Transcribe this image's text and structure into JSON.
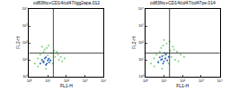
{
  "chart_data": [
    {
      "type": "scatter",
      "title": "cd83fitc+CD14/cd47/igg2apa.012",
      "xlabel": "FL1-H",
      "ylabel": "FL2-H",
      "log": true,
      "xlim": [
        1,
        10000
      ],
      "ylim": [
        1,
        10000
      ],
      "xticks": [
        {
          "value": 1,
          "label": "10⁰"
        },
        {
          "value": 10,
          "label": "10¹"
        },
        {
          "value": 100,
          "label": "10²"
        },
        {
          "value": 1000,
          "label": "10³"
        },
        {
          "value": 10000,
          "label": "10⁴"
        }
      ],
      "yticks": [
        {
          "value": 1,
          "label": "10⁰"
        },
        {
          "value": 10,
          "label": "10¹"
        },
        {
          "value": 100,
          "label": "10²"
        },
        {
          "value": 1000,
          "label": "10³"
        },
        {
          "value": 10000,
          "label": "10⁴"
        }
      ],
      "quadrant": {
        "x": 20,
        "y": 25
      },
      "series": [
        {
          "color": "#7fcf7f",
          "x": [
            3,
            5,
            8,
            12,
            18,
            25,
            40,
            60,
            4,
            6,
            10,
            15,
            22,
            35,
            2,
            3,
            7,
            9,
            14,
            30,
            50,
            80,
            5,
            11
          ],
          "y": [
            4,
            8,
            3,
            12,
            6,
            15,
            10,
            8,
            20,
            30,
            18,
            25,
            35,
            20,
            6,
            12,
            40,
            50,
            9,
            30,
            15,
            12,
            60,
            70
          ]
        },
        {
          "color": "#3060c0",
          "x": [
            4,
            6,
            8,
            10,
            12,
            5,
            7,
            9,
            11,
            14,
            6,
            8
          ],
          "y": [
            6,
            8,
            5,
            9,
            7,
            10,
            12,
            6,
            11,
            9,
            7,
            14
          ]
        }
      ]
    },
    {
      "type": "scatter",
      "title": "cd83fitc+CD14/cd47/cd47pe.014",
      "xlabel": "FL1-H",
      "ylabel": "FL2-H",
      "log": true,
      "xlim": [
        1,
        10000
      ],
      "ylim": [
        1,
        10000
      ],
      "xticks": [
        {
          "value": 1,
          "label": "10⁰"
        },
        {
          "value": 10,
          "label": "10¹"
        },
        {
          "value": 100,
          "label": "10²"
        },
        {
          "value": 1000,
          "label": "10³"
        },
        {
          "value": 10000,
          "label": "10⁴"
        }
      ],
      "yticks": [
        {
          "value": 1,
          "label": "10⁰"
        },
        {
          "value": 10,
          "label": "10¹"
        },
        {
          "value": 100,
          "label": "10²"
        },
        {
          "value": 1000,
          "label": "10³"
        },
        {
          "value": 10000,
          "label": "10⁴"
        }
      ],
      "quadrant": {
        "x": 20,
        "y": 25
      },
      "series": [
        {
          "color": "#7fcf7f",
          "x": [
            3,
            5,
            8,
            12,
            18,
            25,
            40,
            60,
            4,
            6,
            10,
            15,
            22,
            35,
            2,
            3,
            7,
            9,
            14,
            30,
            50,
            80,
            120,
            20,
            10
          ],
          "y": [
            4,
            8,
            3,
            12,
            6,
            15,
            10,
            8,
            20,
            30,
            18,
            25,
            35,
            40,
            6,
            12,
            50,
            70,
            90,
            60,
            30,
            20,
            15,
            120,
            150
          ]
        },
        {
          "color": "#3060c0",
          "x": [
            5,
            7,
            9,
            12,
            15,
            6,
            8,
            10,
            13,
            18,
            8,
            11
          ],
          "y": [
            7,
            10,
            6,
            12,
            9,
            14,
            16,
            8,
            20,
            15,
            11,
            25
          ]
        }
      ]
    }
  ]
}
